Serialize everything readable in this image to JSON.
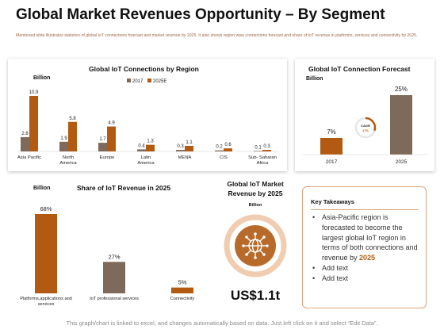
{
  "page": {
    "title": "Global Market Revenues Opportunity – By Segment",
    "subtitle": "Mentioned slide illustrates statistics of global IoT connections forecast and market revenue by 2025. It also shows region wise connections forecast and share of IoT revenue in platforms, services and connectivity by 2025.",
    "footer": "This graph/chart is linked to excel, and changes automatically based on data. Just left click on it and select “Edit Data”."
  },
  "colors": {
    "brown": "#b35a12",
    "taupe": "#7d6a5a",
    "donut_ring": "#f0cdb0",
    "donut_inner": "#b86a2a",
    "takeaways_border": "#d9a37e"
  },
  "chart_data": [
    {
      "type": "bar",
      "title": "Global IoT Connections by Region",
      "ylabel": "Billion",
      "categories": [
        "Asia Pacific",
        "North America",
        "Europe",
        "Latin America",
        "MENA",
        "CIS",
        "Sub- Saharan Africa"
      ],
      "series": [
        {
          "name": "2017",
          "values": [
            2.8,
            1.9,
            1.7,
            0.4,
            0.3,
            0.2,
            0.1
          ],
          "color": "#7d6a5a"
        },
        {
          "name": "2025E",
          "values": [
            10.9,
            5.8,
            4.9,
            1.3,
            1.1,
            0.6,
            0.3
          ],
          "color": "#b35a12"
        }
      ],
      "legend": "top",
      "ylim": [
        0,
        10.9
      ],
      "grid": false
    },
    {
      "type": "bar",
      "title": "Global IoT Connection Forecast",
      "ylabel": "Billion",
      "categories": [
        "2017",
        "2025"
      ],
      "values": [
        7,
        25
      ],
      "labels": [
        "7%",
        "25%"
      ],
      "colors": [
        "#b35a12",
        "#7d6a5a"
      ],
      "ylim": [
        0,
        25
      ],
      "annotation": {
        "line1": "CAGR",
        "line2": "17%"
      },
      "grid": false
    },
    {
      "type": "bar",
      "title": "Share of IoT Revenue in 2025",
      "ylabel": "Billion",
      "categories": [
        "Platforms,applications and services",
        "IoT professional services",
        "Connectivity"
      ],
      "values": [
        68,
        27,
        5
      ],
      "labels": [
        "68%",
        "27%",
        "5%"
      ],
      "colors": [
        "#b35a12",
        "#7d6a5a",
        "#b35a12"
      ],
      "ylim": [
        0,
        68
      ],
      "grid": false
    }
  ],
  "donut": {
    "title_line1": "Global IoT Market",
    "title_line2": "Revenue by 2025",
    "unit": "Billion",
    "value": "US$1.1t",
    "icon": "network-globe-icon"
  },
  "takeaways": {
    "title": "Key Takeaways",
    "bullet": "•",
    "item1_text": "Asia-Pacific region is forecasted to become the largest global IoT region in terms of both connections and revenue by ",
    "item1_highlight": "2025",
    "item2": "Add text",
    "item3": "Add text"
  }
}
